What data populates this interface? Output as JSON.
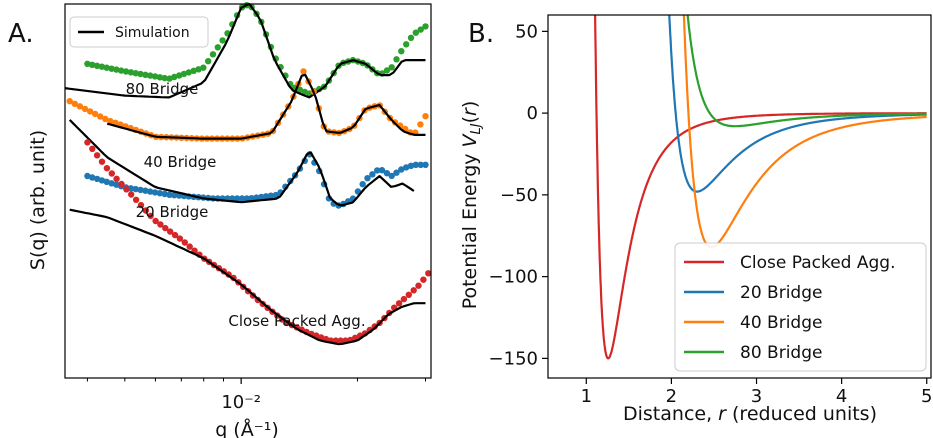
{
  "chart_data": [
    {
      "panel": "A.",
      "type": "scatter",
      "xlabel": "q (Å⁻¹)",
      "ylabel": "S(q) (arb. unit)",
      "xscale": "log",
      "xlim": [
        0.0035,
        0.031
      ],
      "xticks": [
        {
          "value": 0.01,
          "label": "10⁻²"
        }
      ],
      "ylim": [
        0,
        10
      ],
      "yticks": [],
      "grid": false,
      "legend": {
        "position": "top-left",
        "entries": [
          {
            "name": "Simulation",
            "color": "#000000",
            "style": "line"
          }
        ]
      },
      "colors": {
        "simulation": "#000000",
        "close_packed": "#d62728",
        "bridge20": "#1f77b4",
        "bridge40": "#ff7f0e",
        "bridge80": "#2ca02c"
      },
      "annotations": [
        "80 Bridge",
        "40 Bridge",
        "20 Bridge",
        "Close Packed Agg."
      ],
      "series": [
        {
          "name": "80 Bridge",
          "style": "points",
          "color": "#2ca02c",
          "x": [
            0.004,
            0.005,
            0.0065,
            0.008,
            0.0092,
            0.01,
            0.0105,
            0.0112,
            0.0122,
            0.0135,
            0.015,
            0.0165,
            0.018,
            0.0195,
            0.021,
            0.0228,
            0.0245,
            0.0262,
            0.028,
            0.03
          ],
          "y": [
            8.4,
            8.2,
            8.0,
            8.3,
            9.2,
            9.9,
            10.0,
            9.6,
            8.6,
            7.8,
            7.6,
            7.8,
            8.4,
            8.5,
            8.4,
            8.1,
            8.3,
            8.8,
            9.2,
            9.4
          ]
        },
        {
          "name": "80 Bridge sim",
          "style": "line",
          "color": "#000000",
          "x": [
            0.0035,
            0.005,
            0.0065,
            0.008,
            0.0092,
            0.01,
            0.0105,
            0.0112,
            0.0122,
            0.0135,
            0.015,
            0.0165,
            0.018,
            0.0195,
            0.021,
            0.0228,
            0.0245,
            0.0262,
            0.028,
            0.03
          ],
          "y": [
            7.75,
            7.55,
            7.5,
            7.9,
            9.0,
            9.9,
            10.0,
            9.6,
            8.5,
            7.7,
            7.5,
            7.8,
            8.4,
            8.5,
            8.4,
            8.1,
            8.1,
            8.5,
            8.5,
            8.5
          ]
        },
        {
          "name": "40 Bridge",
          "style": "points",
          "color": "#ff7f0e",
          "x": [
            0.0036,
            0.0045,
            0.006,
            0.008,
            0.01,
            0.012,
            0.0135,
            0.0145,
            0.0155,
            0.0165,
            0.018,
            0.0195,
            0.021,
            0.0228,
            0.0245,
            0.0262,
            0.028,
            0.03
          ],
          "y": [
            7.4,
            6.9,
            6.45,
            6.4,
            6.4,
            6.55,
            7.4,
            8.2,
            7.6,
            6.6,
            6.55,
            6.7,
            7.2,
            7.3,
            6.9,
            6.7,
            6.5,
            7.0
          ]
        },
        {
          "name": "40 Bridge sim",
          "style": "line",
          "color": "#000000",
          "x": [
            0.0045,
            0.006,
            0.008,
            0.01,
            0.012,
            0.0135,
            0.0145,
            0.0155,
            0.0165,
            0.018,
            0.0195,
            0.021,
            0.0228,
            0.0245,
            0.0262,
            0.028,
            0.03
          ],
          "y": [
            6.8,
            6.45,
            6.4,
            6.4,
            6.55,
            7.4,
            8.2,
            7.6,
            6.6,
            6.55,
            6.7,
            7.2,
            7.3,
            6.9,
            6.6,
            6.5,
            6.5
          ]
        },
        {
          "name": "20 Bridge",
          "style": "points",
          "color": "#1f77b4",
          "x": [
            0.004,
            0.005,
            0.0065,
            0.0085,
            0.0105,
            0.0125,
            0.014,
            0.015,
            0.016,
            0.017,
            0.018,
            0.0195,
            0.021,
            0.0228,
            0.0245,
            0.0262,
            0.028,
            0.03
          ],
          "y": [
            5.4,
            5.1,
            4.9,
            4.8,
            4.8,
            4.9,
            5.5,
            6.0,
            5.5,
            4.7,
            4.6,
            4.8,
            5.3,
            5.6,
            5.4,
            5.6,
            5.7,
            5.7
          ]
        },
        {
          "name": "20 Bridge sim",
          "style": "line",
          "color": "#000000",
          "x": [
            0.0036,
            0.0045,
            0.006,
            0.008,
            0.01,
            0.0125,
            0.014,
            0.015,
            0.016,
            0.017,
            0.018,
            0.0195,
            0.021,
            0.0228,
            0.0245,
            0.0262,
            0.028
          ],
          "y": [
            6.9,
            5.9,
            5.1,
            4.8,
            4.7,
            4.8,
            5.5,
            6.1,
            5.6,
            4.8,
            4.6,
            4.7,
            5.1,
            5.4,
            5.1,
            5.2,
            5.0
          ]
        },
        {
          "name": "Close Packed Agg.",
          "style": "points",
          "color": "#d62728",
          "x": [
            0.004,
            0.0045,
            0.0052,
            0.006,
            0.007,
            0.008,
            0.0095,
            0.011,
            0.013,
            0.015,
            0.017,
            0.019,
            0.021,
            0.023,
            0.025,
            0.027,
            0.029,
            0.0305
          ],
          "y": [
            6.3,
            5.6,
            4.9,
            4.2,
            3.7,
            3.2,
            2.7,
            2.1,
            1.5,
            1.2,
            1.0,
            1.0,
            1.2,
            1.5,
            1.9,
            2.2,
            2.5,
            2.8
          ]
        },
        {
          "name": "Close Packed Agg. sim",
          "style": "line",
          "color": "#000000",
          "x": [
            0.0036,
            0.0045,
            0.006,
            0.008,
            0.01,
            0.012,
            0.014,
            0.016,
            0.018,
            0.02,
            0.022,
            0.024,
            0.026,
            0.028,
            0.03
          ],
          "y": [
            4.5,
            4.3,
            3.8,
            3.2,
            2.5,
            1.8,
            1.3,
            1.0,
            0.9,
            1.0,
            1.3,
            1.7,
            1.9,
            2.0,
            2.0
          ]
        }
      ]
    },
    {
      "panel": "B.",
      "type": "line",
      "xlabel": "Distance, r (reduced units)",
      "ylabel": "Potential Energy V_LJ(r)",
      "xlim": [
        0.55,
        5.05
      ],
      "ylim": [
        -162,
        60
      ],
      "xticks": [
        1,
        2,
        3,
        4,
        5
      ],
      "yticks": [
        50,
        0,
        -50,
        -100,
        -150
      ],
      "grid": false,
      "legend": {
        "position": "lower-right"
      },
      "series": [
        {
          "name": "Close Packed Agg.",
          "color": "#d62728",
          "epsilon": 150,
          "sigma": 1.12
        },
        {
          "name": "20 Bridge",
          "color": "#1f77b4",
          "epsilon": 48,
          "sigma": 2.05
        },
        {
          "name": "40 Bridge",
          "color": "#ff7f0e",
          "epsilon": 82,
          "sigma": 2.2
        },
        {
          "name": "80 Bridge",
          "color": "#2ca02c",
          "epsilon": 8,
          "sigma": 2.45
        }
      ]
    }
  ]
}
